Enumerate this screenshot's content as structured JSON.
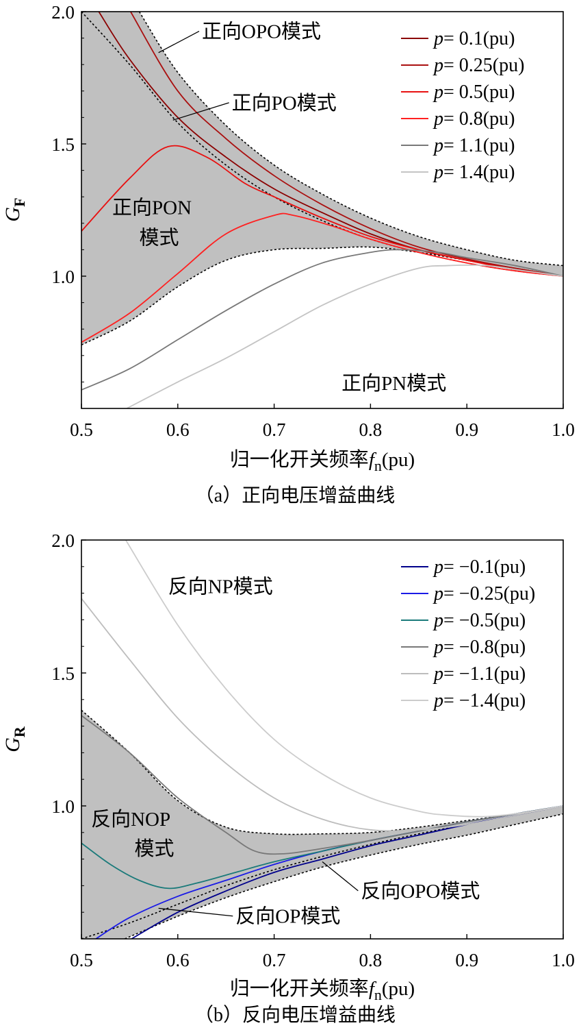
{
  "chart_data": [
    {
      "type": "line",
      "id": "a",
      "caption": "（a）正向电压增益曲线",
      "xlabel_main": "归一化开关频率",
      "xlabel_var": "f",
      "xlabel_sub": "n",
      "xlabel_unit": "(pu)",
      "ylabel_var": "G",
      "ylabel_sub": "F",
      "xlim": [
        0.5,
        1.0
      ],
      "ylim": [
        0.5,
        2.0
      ],
      "xticks": [
        "0.5",
        "0.6",
        "0.7",
        "0.8",
        "0.9",
        "1.0"
      ],
      "yticks": [
        "1.0",
        "1.5",
        "2.0"
      ],
      "ytick_values": [
        1.0,
        1.5,
        2.0
      ],
      "legend_position": "top-right",
      "series": [
        {
          "name": "p= 0.1(pu)",
          "color": "#8b0000",
          "x": [
            0.518,
            0.55,
            0.6,
            0.65,
            0.7,
            0.75,
            0.8,
            0.85,
            0.9,
            0.95,
            1.0
          ],
          "y": [
            2.0,
            1.82,
            1.6,
            1.45,
            1.33,
            1.24,
            1.16,
            1.1,
            1.06,
            1.03,
            1.0
          ]
        },
        {
          "name": "p= 0.25(pu)",
          "color": "#aa1010",
          "x": [
            0.551,
            0.6,
            0.65,
            0.7,
            0.75,
            0.8,
            0.85,
            0.9,
            0.95,
            1.0
          ],
          "y": [
            2.0,
            1.7,
            1.52,
            1.38,
            1.27,
            1.18,
            1.11,
            1.065,
            1.03,
            1.0
          ]
        },
        {
          "name": "p= 0.5(pu)",
          "color": "#e81010",
          "x": [
            0.5,
            0.55,
            0.59,
            0.63,
            0.67,
            0.7,
            0.75,
            0.8,
            0.85,
            0.9,
            0.95,
            1.0
          ],
          "y": [
            1.17,
            1.37,
            1.49,
            1.45,
            1.35,
            1.3,
            1.22,
            1.15,
            1.1,
            1.06,
            1.025,
            1.0
          ]
        },
        {
          "name": "p= 0.8(pu)",
          "color": "#ff2020",
          "x": [
            0.5,
            0.55,
            0.6,
            0.65,
            0.7,
            0.72,
            0.76,
            0.8,
            0.85,
            0.9,
            0.95,
            1.0
          ],
          "y": [
            0.75,
            0.86,
            1.01,
            1.16,
            1.23,
            1.23,
            1.19,
            1.14,
            1.09,
            1.05,
            1.02,
            1.0
          ]
        },
        {
          "name": "p= 1.1(pu)",
          "color": "#787878",
          "x": [
            0.5,
            0.55,
            0.6,
            0.65,
            0.7,
            0.75,
            0.8,
            0.83,
            0.87,
            0.9,
            0.95,
            1.0
          ],
          "y": [
            0.57,
            0.65,
            0.76,
            0.87,
            0.97,
            1.05,
            1.09,
            1.1,
            1.09,
            1.07,
            1.04,
            1.0
          ]
        },
        {
          "name": "p= 1.4(pu)",
          "color": "#c4c4c4",
          "x": [
            0.547,
            0.6,
            0.65,
            0.7,
            0.75,
            0.8,
            0.85,
            0.88,
            0.92,
            0.96,
            1.0
          ],
          "y": [
            0.5,
            0.6,
            0.69,
            0.79,
            0.89,
            0.97,
            1.03,
            1.04,
            1.04,
            1.02,
            1.0
          ]
        }
      ],
      "shaded_region": {
        "upper": {
          "x": [
            0.56,
            0.6,
            0.65,
            0.7,
            0.75,
            0.8,
            0.85,
            0.9,
            0.95,
            1.0
          ],
          "y": [
            2.0,
            1.77,
            1.57,
            1.42,
            1.31,
            1.22,
            1.15,
            1.1,
            1.06,
            1.04
          ]
        },
        "mid": {
          "x": [
            0.5,
            0.55,
            0.6,
            0.65,
            0.7,
            0.75,
            0.8,
            0.85,
            0.9,
            0.95,
            1.0
          ],
          "y": [
            2.0,
            1.8,
            1.58,
            1.42,
            1.3,
            1.21,
            1.14,
            1.09,
            1.05,
            1.02,
            1.0
          ]
        },
        "lower": {
          "x": [
            0.5,
            0.55,
            0.6,
            0.65,
            0.7,
            0.75,
            0.8,
            0.85,
            0.9,
            0.95,
            1.0
          ],
          "y": [
            0.74,
            0.83,
            0.96,
            1.06,
            1.1,
            1.105,
            1.11,
            1.09,
            1.06,
            1.03,
            1.0
          ]
        }
      },
      "annotations": [
        {
          "text": "正向OPO模式",
          "x": 0.625,
          "y": 1.9,
          "pointer_to": [
            0.58,
            1.845
          ]
        },
        {
          "text": "正向PO模式",
          "x": 0.656,
          "y": 1.63,
          "pointer_to": [
            0.595,
            1.59
          ]
        },
        {
          "text": "正向PON",
          "x": 0.532,
          "y": 1.235
        },
        {
          "text": "模式",
          "x": 0.56,
          "y": 1.12
        },
        {
          "text": "正向PN模式",
          "x": 0.77,
          "y": 0.57
        }
      ]
    },
    {
      "type": "line",
      "id": "b",
      "caption": "（b）反向电压增益曲线",
      "xlabel_main": "归一化开关频率",
      "xlabel_var": "f",
      "xlabel_sub": "n",
      "xlabel_unit": "(pu)",
      "ylabel_var": "G",
      "ylabel_sub": "R",
      "xlim": [
        0.5,
        1.0
      ],
      "ylim": [
        0.5,
        2.0
      ],
      "xticks": [
        "0.5",
        "0.6",
        "0.7",
        "0.8",
        "0.9",
        "1.0"
      ],
      "yticks": [
        "1.0",
        "1.5",
        "2.0"
      ],
      "ytick_values": [
        1.0,
        1.5,
        2.0
      ],
      "legend_position": "top-right",
      "series": [
        {
          "name": "p= −0.1(pu)",
          "color": "#00008b",
          "x": [
            0.552,
            0.6,
            0.65,
            0.7,
            0.75,
            0.8,
            0.85,
            0.9,
            0.95,
            1.0
          ],
          "y": [
            0.5,
            0.6,
            0.68,
            0.75,
            0.8,
            0.85,
            0.89,
            0.93,
            0.965,
            1.0
          ]
        },
        {
          "name": "p= −0.25(pu)",
          "color": "#1a1ae6",
          "x": [
            0.515,
            0.55,
            0.6,
            0.65,
            0.7,
            0.75,
            0.8,
            0.85,
            0.9,
            0.95,
            1.0
          ],
          "y": [
            0.5,
            0.58,
            0.66,
            0.72,
            0.78,
            0.83,
            0.87,
            0.905,
            0.94,
            0.97,
            1.0
          ]
        },
        {
          "name": "p= −0.5(pu)",
          "color": "#1a7a7a",
          "x": [
            0.5,
            0.53,
            0.56,
            0.59,
            0.62,
            0.66,
            0.7,
            0.75,
            0.8,
            0.85,
            0.9,
            0.95,
            1.0
          ],
          "y": [
            0.86,
            0.78,
            0.72,
            0.69,
            0.71,
            0.75,
            0.79,
            0.83,
            0.87,
            0.905,
            0.94,
            0.97,
            1.0
          ]
        },
        {
          "name": "p= −0.8(pu)",
          "color": "#787878",
          "x": [
            0.5,
            0.55,
            0.6,
            0.65,
            0.68,
            0.71,
            0.75,
            0.8,
            0.85,
            0.9,
            0.95,
            1.0
          ],
          "y": [
            1.34,
            1.2,
            1.03,
            0.9,
            0.83,
            0.82,
            0.84,
            0.87,
            0.905,
            0.94,
            0.97,
            1.0
          ]
        },
        {
          "name": "p= −1.1(pu)",
          "color": "#bdbdbd",
          "x": [
            0.5,
            0.55,
            0.6,
            0.65,
            0.7,
            0.75,
            0.8,
            0.85,
            0.9,
            0.95,
            1.0
          ],
          "y": [
            1.78,
            1.55,
            1.33,
            1.16,
            1.03,
            0.95,
            0.91,
            0.91,
            0.93,
            0.965,
            1.0
          ]
        },
        {
          "name": "p= −1.4(pu)",
          "color": "#cccccc",
          "x": [
            0.546,
            0.6,
            0.65,
            0.7,
            0.75,
            0.8,
            0.85,
            0.88,
            0.92,
            0.96,
            1.0
          ],
          "y": [
            2.0,
            1.68,
            1.44,
            1.25,
            1.12,
            1.03,
            0.98,
            0.965,
            0.96,
            0.975,
            1.0
          ]
        }
      ],
      "shaded_region": {
        "upper": {
          "x": [
            0.5,
            0.55,
            0.6,
            0.65,
            0.7,
            0.75,
            0.8,
            0.85,
            0.9,
            0.95,
            1.0
          ],
          "y": [
            1.36,
            1.2,
            1.02,
            0.92,
            0.895,
            0.895,
            0.9,
            0.92,
            0.945,
            0.97,
            1.0
          ]
        },
        "mid": {
          "x": [
            0.5,
            0.55,
            0.6,
            0.65,
            0.7,
            0.75,
            0.8,
            0.85,
            0.9,
            0.95,
            1.0
          ],
          "y": [
            0.5,
            0.56,
            0.63,
            0.7,
            0.76,
            0.81,
            0.855,
            0.895,
            0.93,
            0.965,
            1.0
          ]
        },
        "lower": {
          "x": [
            0.545,
            0.6,
            0.65,
            0.7,
            0.75,
            0.8,
            0.85,
            0.9,
            0.95,
            1.0
          ],
          "y": [
            0.5,
            0.585,
            0.655,
            0.715,
            0.77,
            0.815,
            0.855,
            0.89,
            0.93,
            0.97
          ]
        }
      },
      "annotations": [
        {
          "text": "反向NP模式",
          "x": 0.59,
          "y": 1.8
        },
        {
          "text": "反向NOP",
          "x": 0.51,
          "y": 0.925
        },
        {
          "text": "模式",
          "x": 0.555,
          "y": 0.815
        },
        {
          "text": "反向OPO模式",
          "x": 0.79,
          "y": 0.655,
          "pointer_to": [
            0.75,
            0.79
          ]
        },
        {
          "text": "反向OP模式",
          "x": 0.66,
          "y": 0.56,
          "pointer_to": [
            0.58,
            0.615
          ]
        }
      ]
    }
  ]
}
